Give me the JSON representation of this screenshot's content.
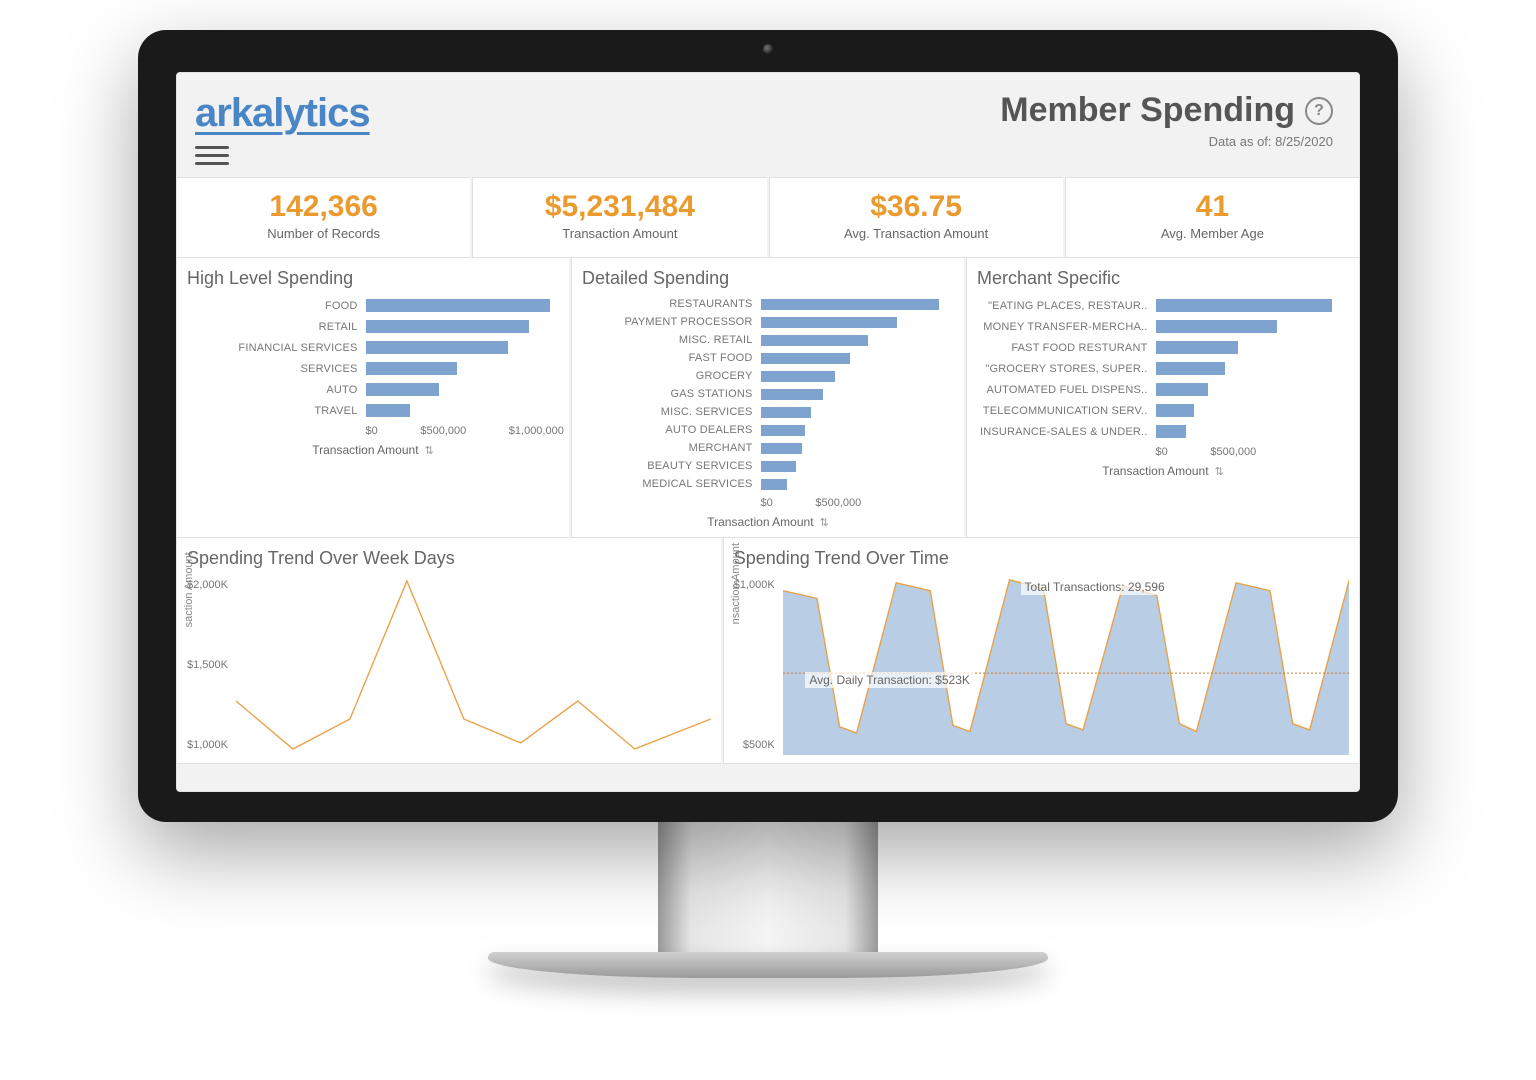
{
  "brand": "arkalytics",
  "page_title": "Member Spending",
  "data_as_of_label": "Data as of:",
  "data_as_of": "8/25/2020",
  "colors": {
    "accent_orange": "#eb9a2e",
    "bar_blue": "#7ea3cf",
    "line_orange": "#e8a24a",
    "area_blue": "#adc4df",
    "grid": "#e0e0e0",
    "text_muted": "#666666",
    "bg_panel": "#ffffff",
    "bg_screen": "#f2f2f2"
  },
  "kpis": [
    {
      "value": "142,366",
      "label": "Number of Records"
    },
    {
      "value": "$5,231,484",
      "label": "Transaction Amount"
    },
    {
      "value": "$36.75",
      "label": "Avg. Transaction Amount"
    },
    {
      "value": "41",
      "label": "Avg. Member Age"
    }
  ],
  "x_axis_label": "Transaction Amount",
  "high_level": {
    "title": "High Level Spending",
    "max": 1100000,
    "ticks": [
      "$0",
      "$500,000",
      "$1,000,000"
    ],
    "items": [
      {
        "cat": "FOOD",
        "val": 1050000
      },
      {
        "cat": "RETAIL",
        "val": 930000
      },
      {
        "cat": "FINANCIAL SERVICES",
        "val": 810000
      },
      {
        "cat": "SERVICES",
        "val": 520000
      },
      {
        "cat": "AUTO",
        "val": 420000
      },
      {
        "cat": "TRAVEL",
        "val": 250000
      }
    ]
  },
  "detailed": {
    "title": "Detailed Spending",
    "max": 650000,
    "ticks": [
      "$0",
      "$500,000"
    ],
    "items": [
      {
        "cat": "RESTAURANTS",
        "val": 600000
      },
      {
        "cat": "PAYMENT PROCESSOR",
        "val": 460000
      },
      {
        "cat": "MISC. RETAIL",
        "val": 360000
      },
      {
        "cat": "FAST FOOD",
        "val": 300000
      },
      {
        "cat": "GROCERY",
        "val": 250000
      },
      {
        "cat": "GAS STATIONS",
        "val": 210000
      },
      {
        "cat": "MISC. SERVICES",
        "val": 170000
      },
      {
        "cat": "AUTO DEALERS",
        "val": 150000
      },
      {
        "cat": "MERCHANT",
        "val": 140000
      },
      {
        "cat": "BEAUTY SERVICES",
        "val": 120000
      },
      {
        "cat": "MEDICAL SERVICES",
        "val": 90000
      }
    ]
  },
  "merchant": {
    "title": "Merchant Specific",
    "max": 700000,
    "ticks": [
      "$0",
      "$500,000"
    ],
    "items": [
      {
        "cat": "\"EATING PLACES, RESTAUR..",
        "val": 640000
      },
      {
        "cat": "MONEY TRANSFER-MERCHA..",
        "val": 440000
      },
      {
        "cat": "FAST FOOD RESTURANT",
        "val": 300000
      },
      {
        "cat": "\"GROCERY STORES, SUPER..",
        "val": 250000
      },
      {
        "cat": "AUTOMATED FUEL DISPENS..",
        "val": 190000
      },
      {
        "cat": "TELECOMMUNICATION SERV..",
        "val": 140000
      },
      {
        "cat": "INSURANCE-SALES & UNDER..",
        "val": 110000
      }
    ]
  },
  "weekdays": {
    "title": "Spending Trend Over Week Days",
    "y_label": "saction Amount",
    "y_ticks": [
      "$2,000K",
      "$1,500K",
      "$1,000K"
    ],
    "line_color": "#e8a24a",
    "points": [
      {
        "x": 0,
        "y": 1050
      },
      {
        "x": 12,
        "y": 650
      },
      {
        "x": 24,
        "y": 900
      },
      {
        "x": 36,
        "y": 2050
      },
      {
        "x": 48,
        "y": 900
      },
      {
        "x": 60,
        "y": 700
      },
      {
        "x": 72,
        "y": 1050
      },
      {
        "x": 84,
        "y": 650
      },
      {
        "x": 100,
        "y": 900
      }
    ],
    "y_domain": [
      600,
      2100
    ]
  },
  "overtime": {
    "title": "Spending Trend Over Time",
    "y_label": "nsaction Amount",
    "y_ticks": [
      "$1,000K",
      "$500K"
    ],
    "annotations": {
      "total": "Total Transactions: 29,596",
      "avg": "Avg. Daily Transaction: $523K"
    },
    "line_color": "#e8a24a",
    "area_color": "#adc4df",
    "ref_line_y": 523,
    "y_domain": [
      0,
      1150
    ],
    "series": [
      {
        "x": 0,
        "y": 1050
      },
      {
        "x": 6,
        "y": 1000
      },
      {
        "x": 10,
        "y": 180
      },
      {
        "x": 13,
        "y": 140
      },
      {
        "x": 20,
        "y": 1100
      },
      {
        "x": 26,
        "y": 1050
      },
      {
        "x": 30,
        "y": 190
      },
      {
        "x": 33,
        "y": 150
      },
      {
        "x": 40,
        "y": 1120
      },
      {
        "x": 46,
        "y": 1060
      },
      {
        "x": 50,
        "y": 200
      },
      {
        "x": 53,
        "y": 160
      },
      {
        "x": 60,
        "y": 1080
      },
      {
        "x": 66,
        "y": 1020
      },
      {
        "x": 70,
        "y": 200
      },
      {
        "x": 73,
        "y": 150
      },
      {
        "x": 80,
        "y": 1100
      },
      {
        "x": 86,
        "y": 1050
      },
      {
        "x": 90,
        "y": 200
      },
      {
        "x": 93,
        "y": 160
      },
      {
        "x": 100,
        "y": 1120
      }
    ]
  }
}
